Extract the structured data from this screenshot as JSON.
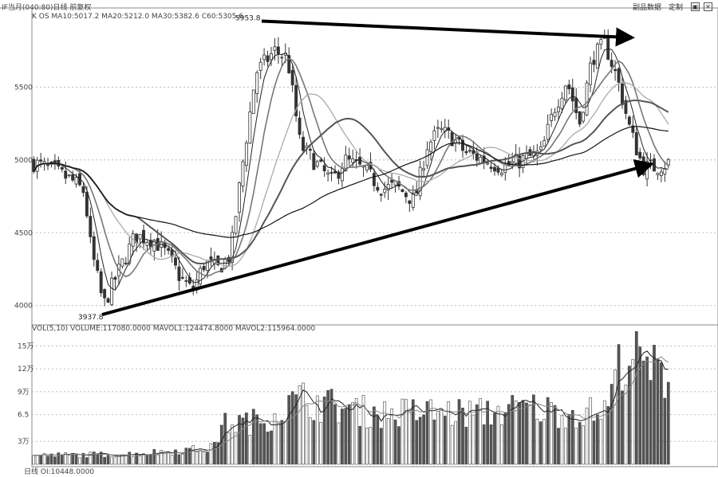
{
  "header": {
    "title": "IF当月(040:80)日线 前复权",
    "ma_line": "K OS MA10:5017.2 MA20:5212.0 MA30:5382.6 C60:5305.6",
    "vol_line": "VOL(5,10) VOLUME:117080.0000 MAVOL1:124474.8000 MAVOL2:115964.0000",
    "bottom_line": "日线 OI:10448.0000",
    "button_label": "副品数据",
    "menu_label": "定制"
  },
  "chart_data": [
    {
      "type": "candlestick",
      "title": "",
      "yticks": [
        4000,
        4500,
        5000,
        5500
      ],
      "ylim": [
        3900,
        6000
      ],
      "grid": true,
      "annotations": [
        {
          "text": "5953.8",
          "value": 5953.8
        },
        {
          "text": "3937.8",
          "value": 3937.8
        }
      ],
      "trendlines": [
        {
          "name": "upper",
          "from": [
            0.36,
            5953.8
          ],
          "to": [
            0.94,
            5840
          ]
        },
        {
          "name": "lower",
          "from": [
            0.11,
            3937.8
          ],
          "to": [
            0.97,
            4970
          ]
        }
      ],
      "price_knots": [
        [
          0,
          4980
        ],
        [
          0.03,
          4930
        ],
        [
          0.06,
          4860
        ],
        [
          0.08,
          4780
        ],
        [
          0.09,
          4400
        ],
        [
          0.1,
          4200
        ],
        [
          0.11,
          4000
        ],
        [
          0.13,
          4200
        ],
        [
          0.16,
          4480
        ],
        [
          0.19,
          4450
        ],
        [
          0.21,
          4350
        ],
        [
          0.23,
          4200
        ],
        [
          0.25,
          4100
        ],
        [
          0.27,
          4300
        ],
        [
          0.29,
          4250
        ],
        [
          0.31,
          4350
        ],
        [
          0.33,
          5000
        ],
        [
          0.35,
          5600
        ],
        [
          0.38,
          5750
        ],
        [
          0.4,
          5700
        ],
        [
          0.42,
          5100
        ],
        [
          0.45,
          4950
        ],
        [
          0.47,
          4850
        ],
        [
          0.49,
          5000
        ],
        [
          0.52,
          4930
        ],
        [
          0.55,
          4800
        ],
        [
          0.57,
          4820
        ],
        [
          0.6,
          4720
        ],
        [
          0.62,
          5100
        ],
        [
          0.64,
          5200
        ],
        [
          0.66,
          5150
        ],
        [
          0.68,
          5050
        ],
        [
          0.71,
          5000
        ],
        [
          0.74,
          4950
        ],
        [
          0.77,
          5000
        ],
        [
          0.8,
          5050
        ],
        [
          0.82,
          5350
        ],
        [
          0.84,
          5550
        ],
        [
          0.86,
          5250
        ],
        [
          0.88,
          5700
        ],
        [
          0.9,
          5800
        ],
        [
          0.92,
          5550
        ],
        [
          0.94,
          5200
        ],
        [
          0.96,
          4950
        ],
        [
          0.98,
          4950
        ],
        [
          1.0,
          4980
        ]
      ]
    },
    {
      "type": "bar",
      "title": "",
      "yticks_labels": [
        "3万",
        "6.5",
        "9万",
        "12万",
        "15万"
      ],
      "yticks": [
        3,
        6.5,
        9.5,
        12.5,
        15.5
      ],
      "ylim": [
        0,
        17
      ],
      "vol_knots": [
        [
          0,
          1.2
        ],
        [
          0.15,
          1.4
        ],
        [
          0.28,
          2.2
        ],
        [
          0.3,
          5.5
        ],
        [
          0.36,
          6.0
        ],
        [
          0.42,
          9.0
        ],
        [
          0.5,
          7.5
        ],
        [
          0.55,
          7.0
        ],
        [
          0.62,
          7.2
        ],
        [
          0.7,
          7.0
        ],
        [
          0.78,
          7.8
        ],
        [
          0.85,
          7.0
        ],
        [
          0.9,
          7.3
        ],
        [
          0.93,
          15.5
        ],
        [
          0.96,
          13.5
        ],
        [
          1.0,
          12.0
        ]
      ]
    }
  ]
}
